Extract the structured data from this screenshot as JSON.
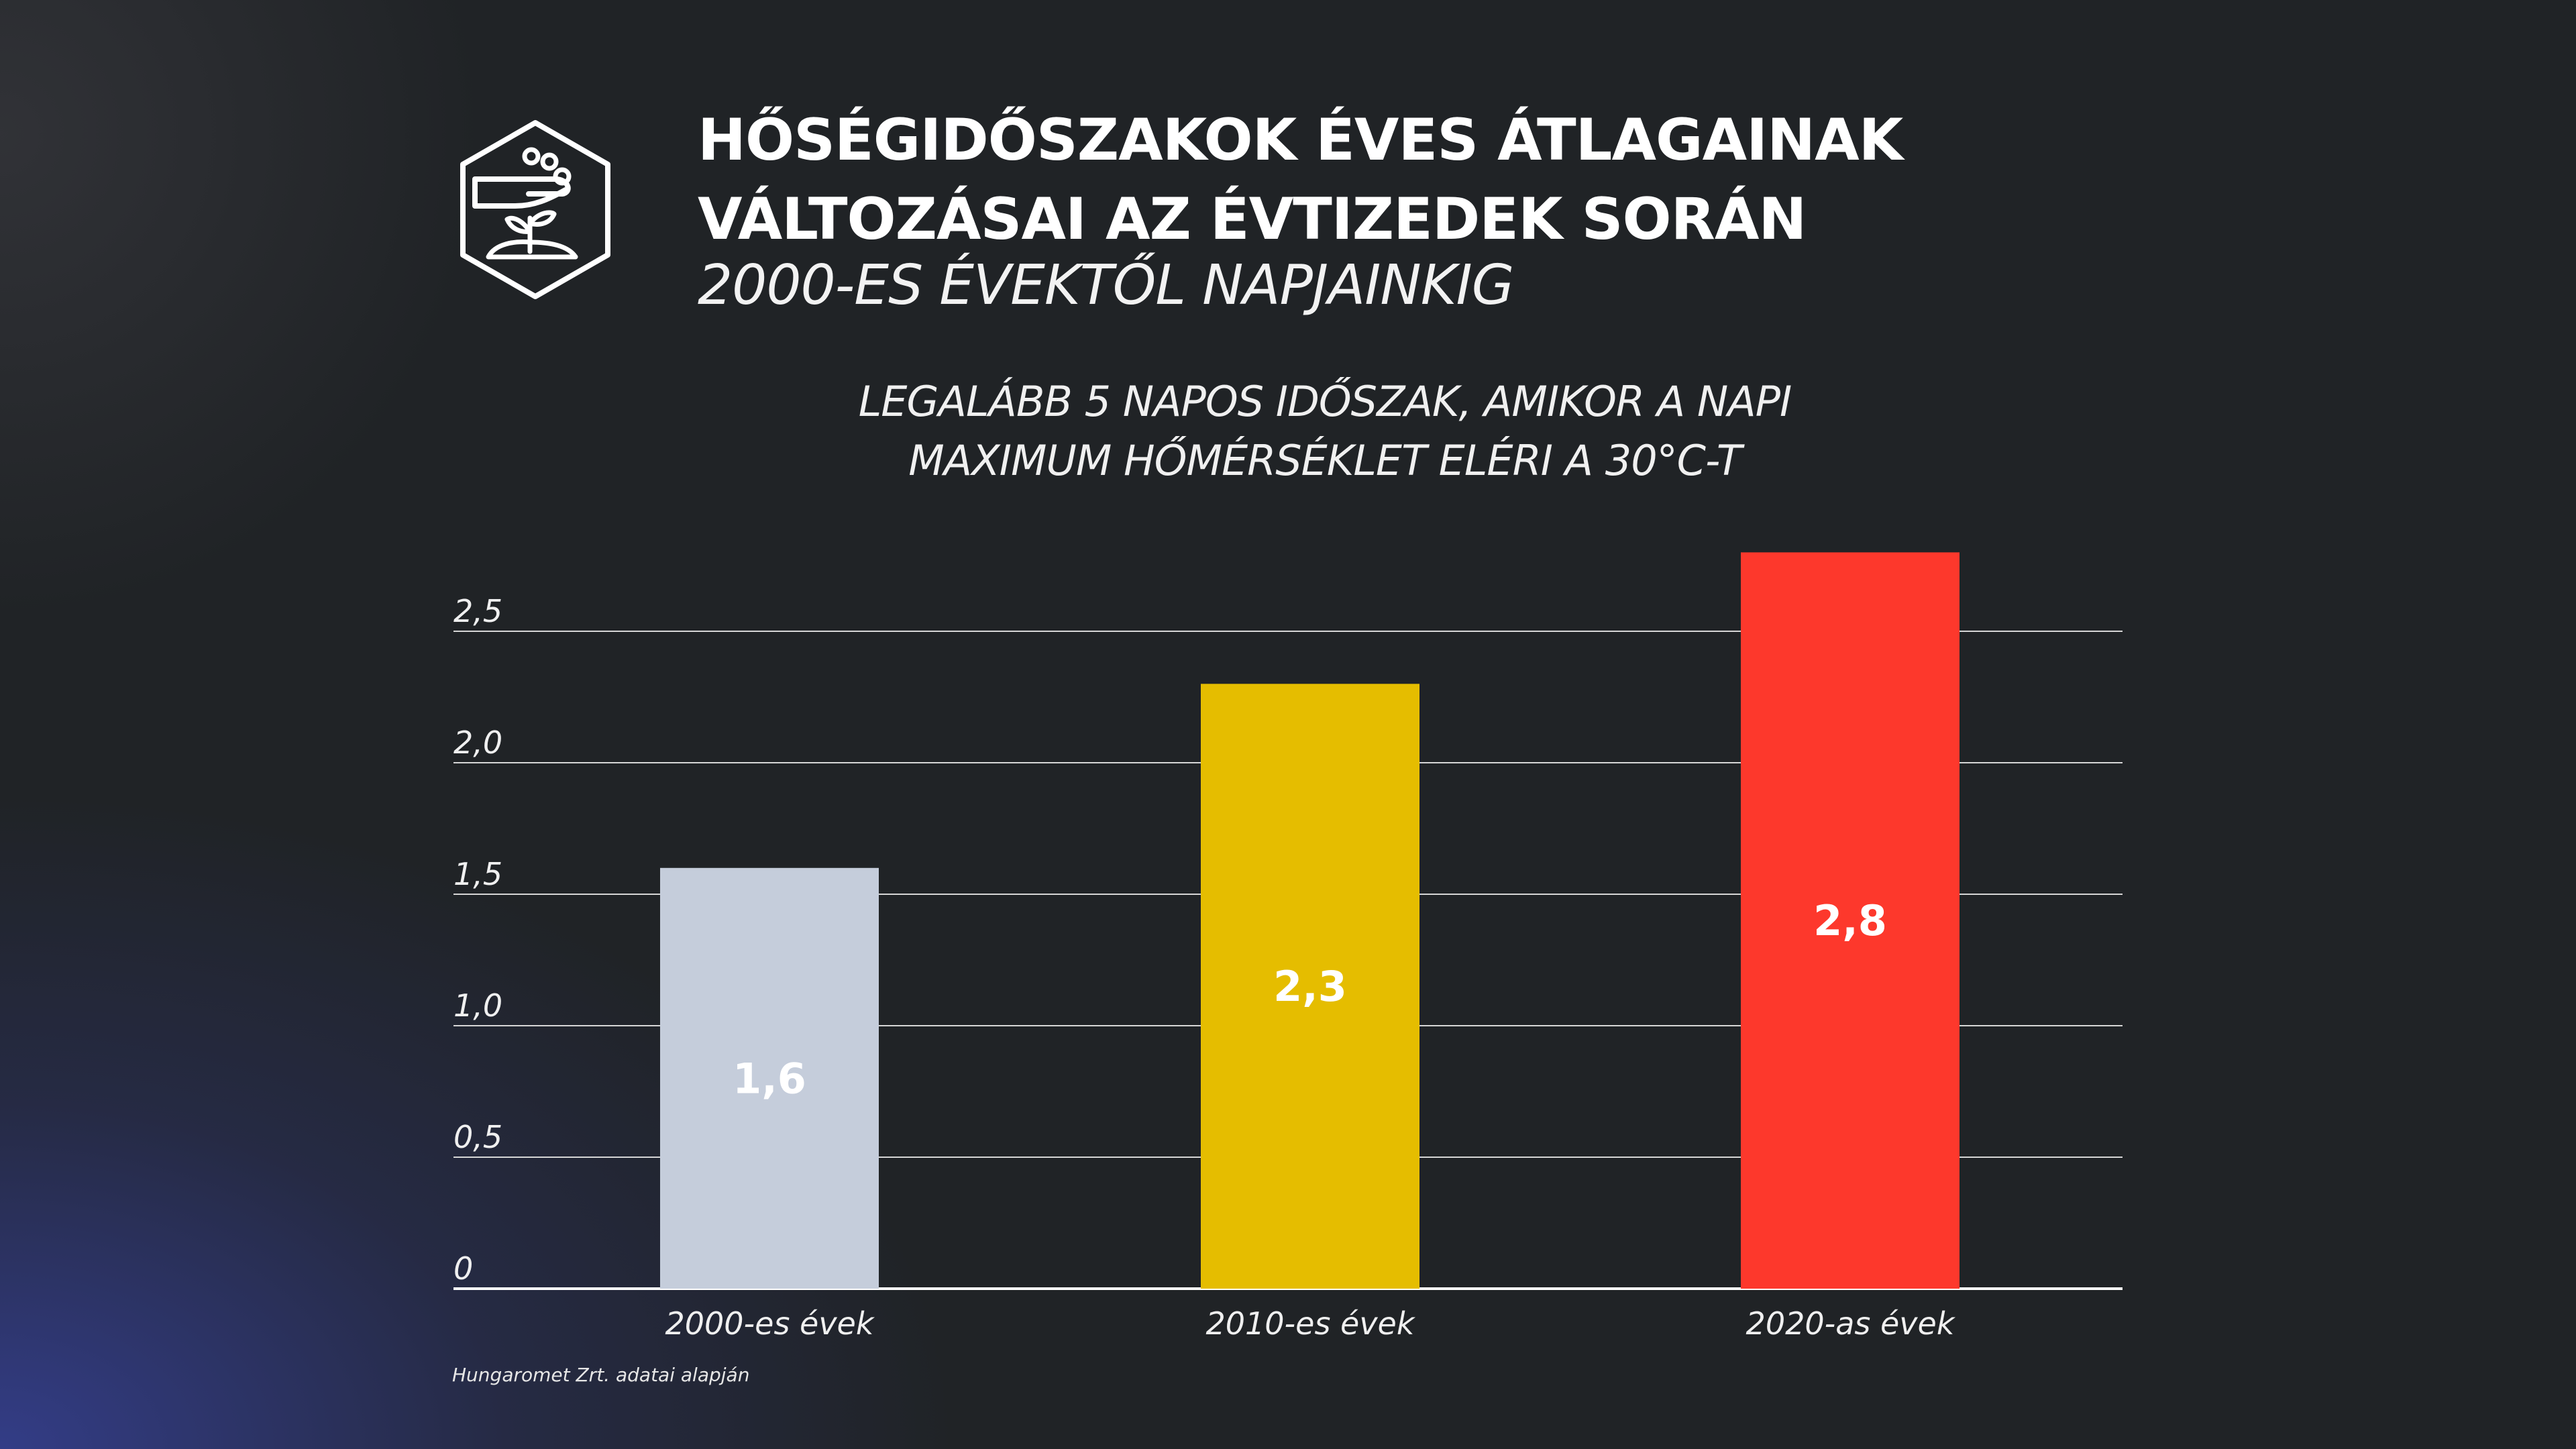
{
  "header": {
    "title_line1": "HŐSÉGIDŐSZAKOK ÉVES ÁTLAGAINAK",
    "title_line2": "VÁLTOZÁSAI AZ ÉVTIZEDEK SORÁN",
    "subtitle": "2000-ES ÉVEKTŐL NAPJAINKIG",
    "logo_icon": "hand-plant-hexagon-icon"
  },
  "description": {
    "line1": "LEGALÁBB 5 NAPOS IDŐSZAK, AMIKOR A NAPI",
    "line2": "MAXIMUM HŐMÉRSÉKLET ELÉRI A 30°C-T"
  },
  "source": "Hungaromet Zrt. adatai alapján",
  "chart_data": {
    "type": "bar",
    "categories": [
      "2000-es évek",
      "2010-es évek",
      "2020-as évek"
    ],
    "values": [
      1.6,
      2.3,
      2.8
    ],
    "value_labels": [
      "1,6",
      "2,3",
      "2,8"
    ],
    "colors": [
      "#c5cddb",
      "#e5bd00",
      "#fd382c"
    ],
    "ylim": [
      0,
      2.8
    ],
    "yticks": [
      0,
      0.5,
      1.0,
      1.5,
      2.0,
      2.5
    ],
    "ytick_labels": [
      "0",
      "0,5",
      "1,0",
      "1,5",
      "2,0",
      "2,5"
    ],
    "grid": true,
    "xlabel": "",
    "ylabel": ""
  }
}
